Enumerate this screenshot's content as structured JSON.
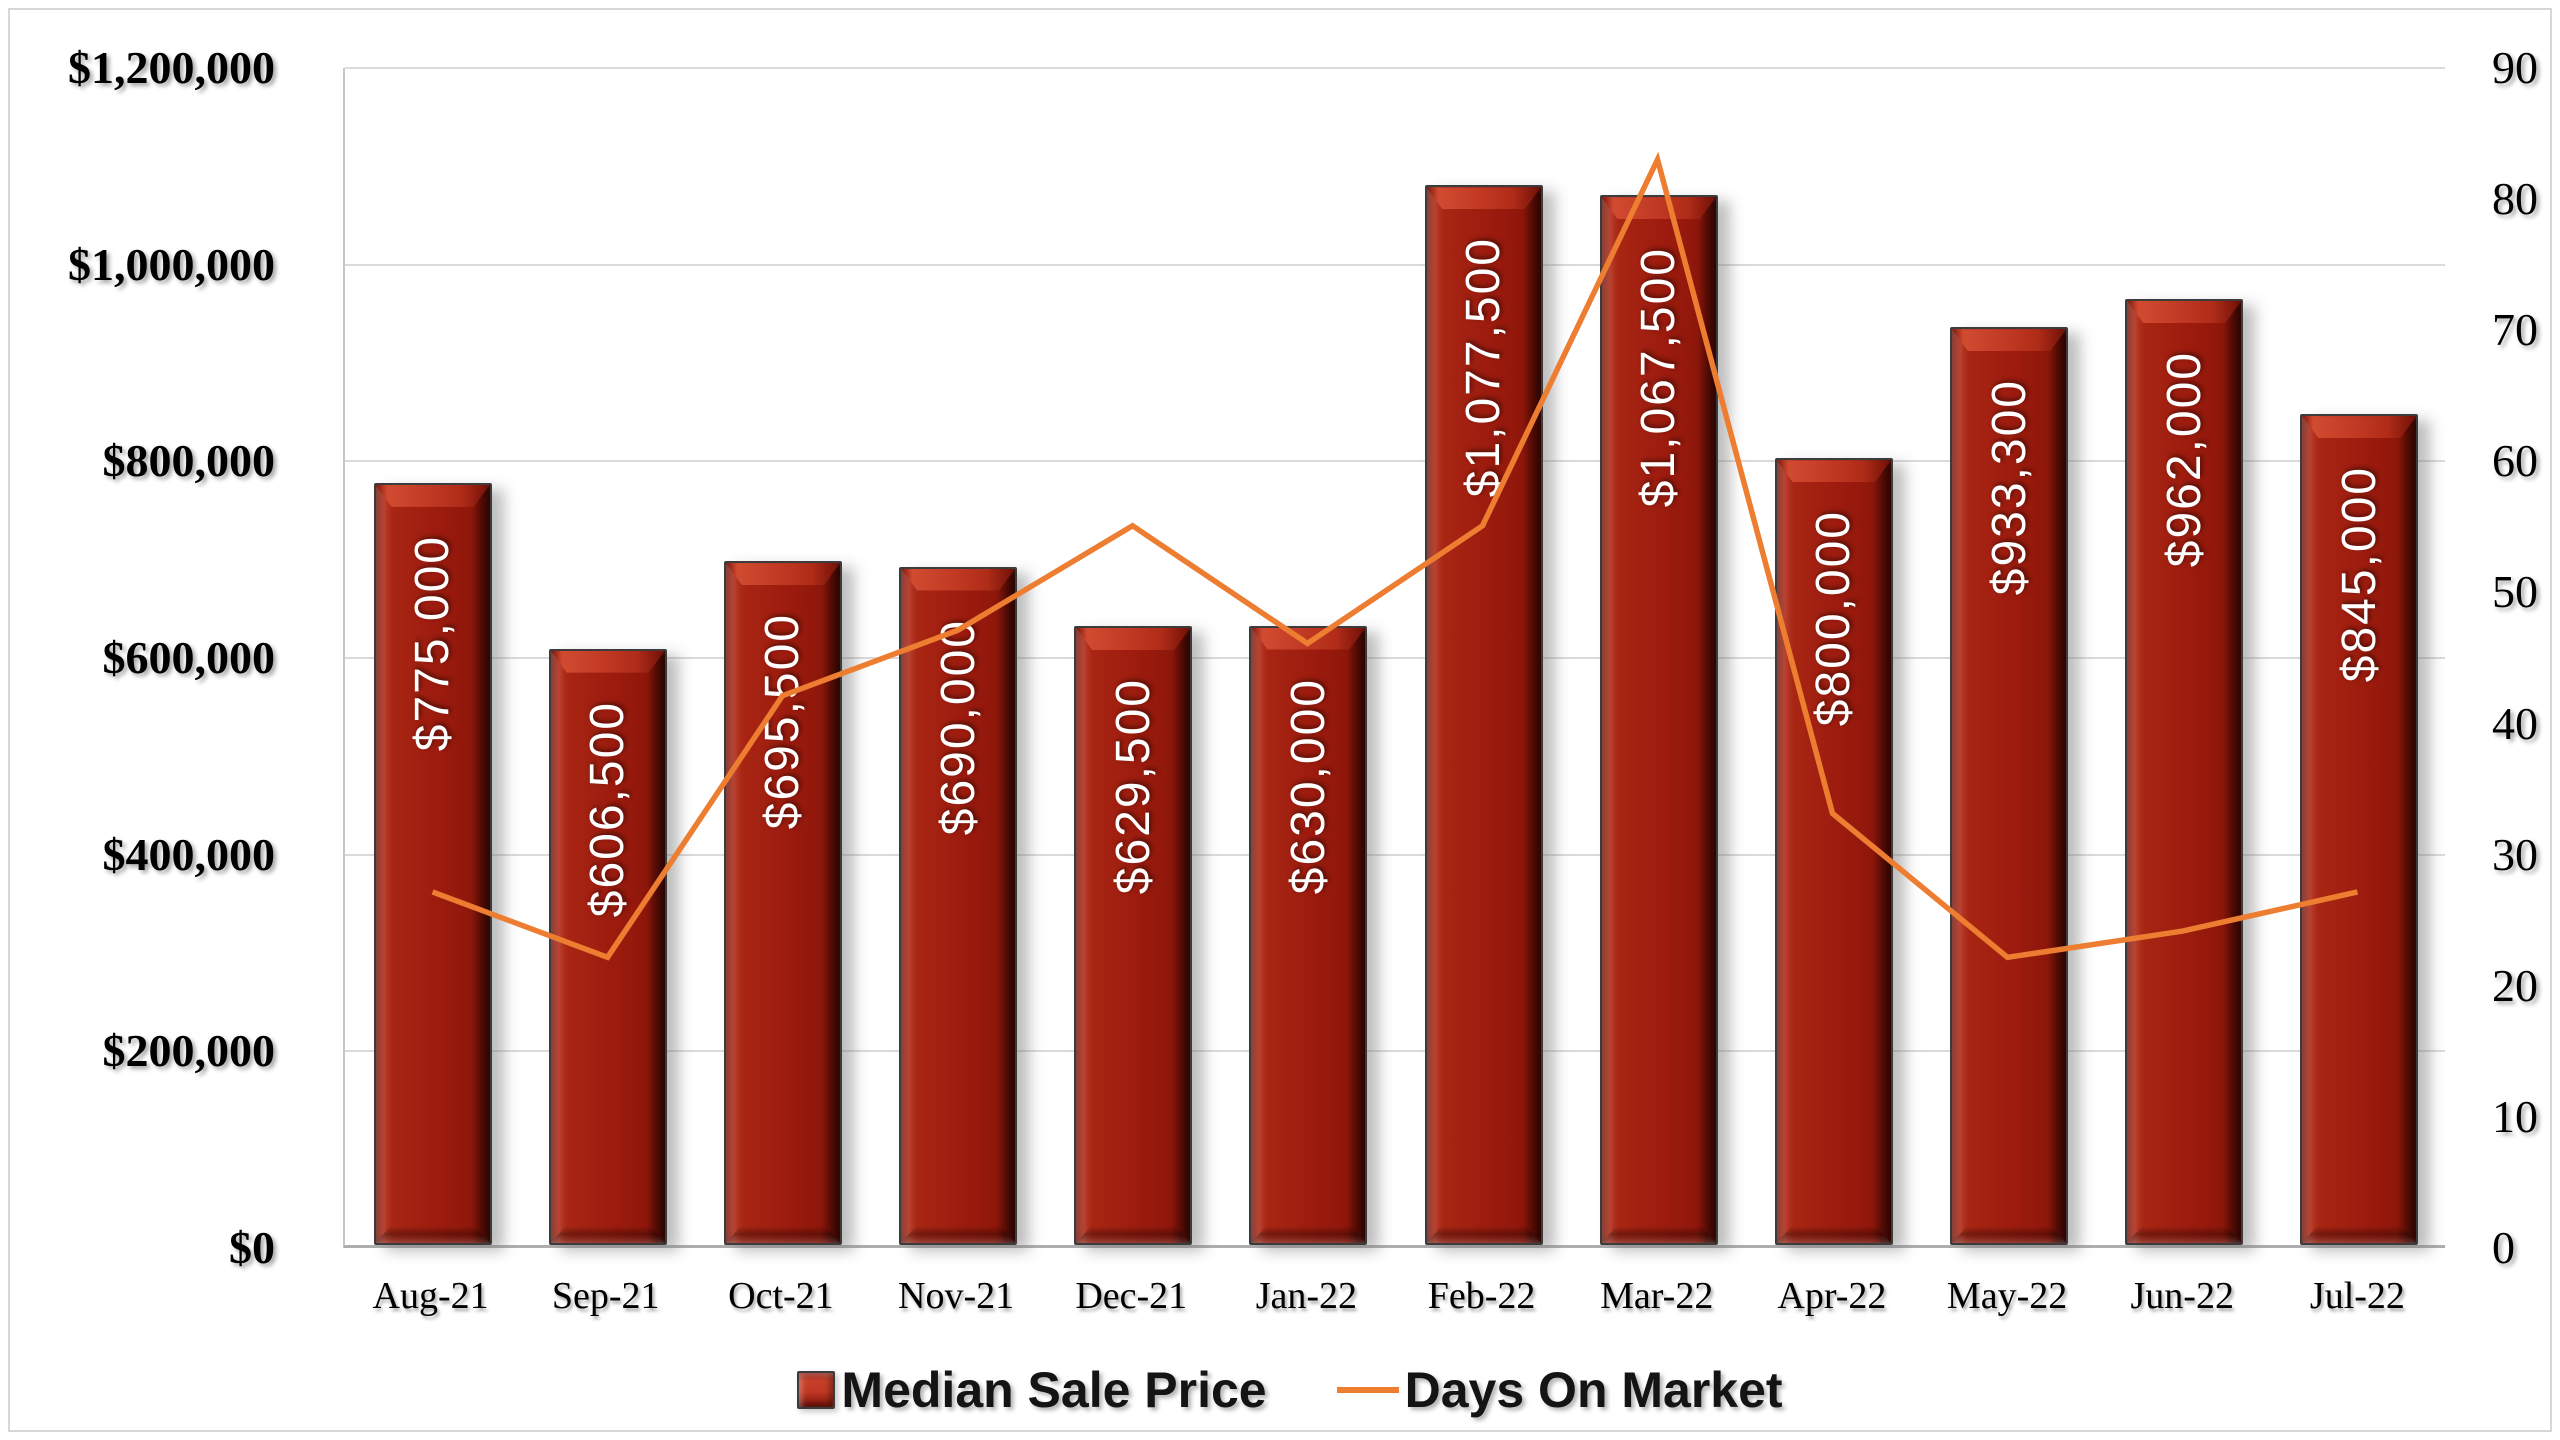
{
  "chart_data": {
    "type": "combo",
    "title": "",
    "categories": [
      "Aug-21",
      "Sep-21",
      "Oct-21",
      "Nov-21",
      "Dec-21",
      "Jan-22",
      "Feb-22",
      "Mar-22",
      "Apr-22",
      "May-22",
      "Jun-22",
      "Jul-22"
    ],
    "series": [
      {
        "name": "Median Sale Price",
        "chart_type": "bar",
        "axis": "left",
        "color": "#9C1B0E",
        "values": [
          775000,
          606500,
          695500,
          690000,
          629500,
          630000,
          1077500,
          1067500,
          800000,
          933300,
          962000,
          845000
        ],
        "data_labels": [
          "$775,000",
          "$606,500",
          "$695,500",
          "$690,000",
          "$629,500",
          "$630,000",
          "$1,077,500",
          "$1,067,500",
          "$800,000",
          "$933,300",
          "$962,000",
          "$845,000"
        ]
      },
      {
        "name": "Days On Market",
        "chart_type": "line",
        "axis": "right",
        "color": "#ED7D31",
        "values": [
          27,
          22,
          42,
          47,
          55,
          46,
          55,
          83,
          33,
          22,
          24,
          27
        ]
      }
    ],
    "left_axis": {
      "min": 0,
      "max": 1200000,
      "step": 200000,
      "tick_labels": [
        "$1,200,000",
        "$1,000,000",
        "$800,000",
        "$600,000",
        "$400,000",
        "$200,000",
        "$0"
      ]
    },
    "right_axis": {
      "min": 0,
      "max": 90,
      "step": 10,
      "tick_labels": [
        "90",
        "80",
        "70",
        "60",
        "50",
        "40",
        "30",
        "20",
        "10",
        "0"
      ]
    },
    "grid": true,
    "legend_position": "bottom"
  },
  "legend": {
    "items": [
      {
        "label": "Median Sale Price",
        "swatch": "bar"
      },
      {
        "label": "Days On Market",
        "swatch": "line"
      }
    ]
  },
  "colors": {
    "bar_fill": "#9C1B0E",
    "bar_bevel_highlight": "#C23A24",
    "bar_edge_dark": "#4A0A04",
    "bar_outline": "#3C3C3C",
    "line": "#ED7D31",
    "gridline": "#DADADA",
    "axis_line": "#C6C6C6",
    "axis_text": "#000000",
    "bar_label_text": "#FFFFFF"
  }
}
